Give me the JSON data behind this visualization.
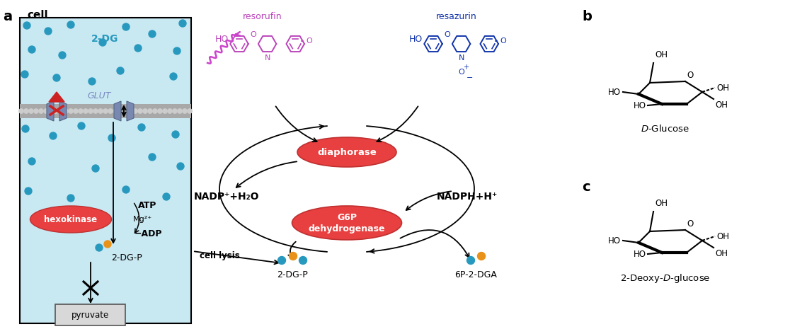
{
  "panel_a_label": "a",
  "panel_b_label": "b",
  "panel_c_label": "c",
  "cell_label": "cell",
  "dg_label": "2-DG",
  "glut_label": "GLUT",
  "hexokinase_label": "hexokinase",
  "atp_label": "ATP",
  "mg_label": "Mg²⁺",
  "adp_label": "−ADP",
  "dg_p_label": "2-DG-P",
  "cell_lysis_label": "cell lysis",
  "pyruvate_label": "pyruvate",
  "resorufin_label": "resorufin",
  "resazurin_label": "resazurin",
  "diaphorase_label": "diaphorase",
  "g6p_line1": "G6P",
  "g6p_line2": "dehydrogenase",
  "nadp_label": "NADP⁺+H₂O",
  "nadph_label": "NADPH+H⁺",
  "dg_p_outside": "2-DG-P",
  "dga_label": "6P-2-DGA",
  "d_glucose_label": "D-Glucose",
  "deoxy_glucose_label": "2-Deoxy-D-glucose",
  "cell_bg": "#c8e8f2",
  "dot_color_teal": "#2899be",
  "dot_color_orange": "#e8921a",
  "enzyme_fill": "#e84040",
  "enzyme_edge": "#c03030",
  "membrane_color": "#7888b0",
  "resorufin_color": "#bb44bb",
  "resazurin_color": "#1133aa",
  "arrow_color": "#222222",
  "red_cross_color": "#cc2222",
  "red_triangle_color": "#cc2222",
  "wavy_color": "#cc44cc"
}
